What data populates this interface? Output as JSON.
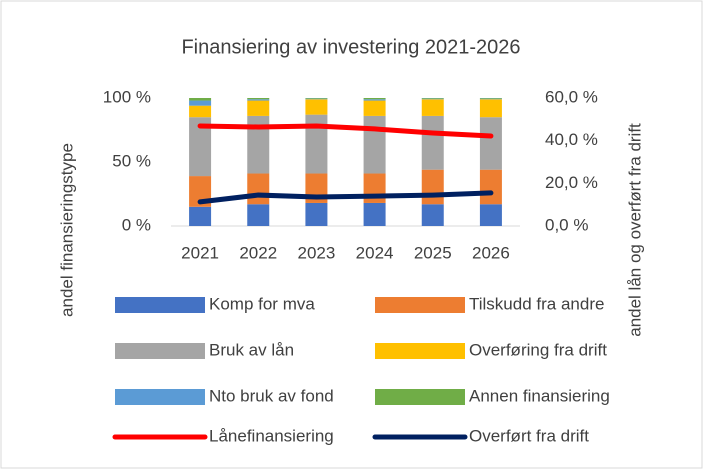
{
  "chart_data": {
    "type": "bar",
    "stacked": true,
    "title": "Finansiering av investering 2021-2026",
    "ylabel": "andel finansieringstype",
    "y2label": "andel lån og overført fra drift",
    "categories": [
      "2021",
      "2022",
      "2023",
      "2024",
      "2025",
      "2026"
    ],
    "ylim": [
      0,
      100
    ],
    "yticks": [
      {
        "value": 0,
        "label": "0 %"
      },
      {
        "value": 50,
        "label": "50 %"
      },
      {
        "value": 100,
        "label": "100 %"
      }
    ],
    "y2lim": [
      0,
      60
    ],
    "y2ticks": [
      {
        "value": 0,
        "label": "0,0 %"
      },
      {
        "value": 20,
        "label": "20,0 %"
      },
      {
        "value": 40,
        "label": "40,0 %"
      },
      {
        "value": 60,
        "label": "60,0 %"
      }
    ],
    "legend": "bottom",
    "series": [
      {
        "name": "Komp for mva",
        "color": "#4472c4",
        "values": [
          15,
          17,
          18,
          18,
          17,
          17
        ]
      },
      {
        "name": "Tilskudd fra andre",
        "color": "#ed7d31",
        "values": [
          24,
          24,
          23,
          23,
          27,
          27
        ]
      },
      {
        "name": "Bruk av lån",
        "color": "#a5a5a5",
        "values": [
          46,
          45,
          46,
          45,
          42,
          41
        ]
      },
      {
        "name": "Overføring fra drift",
        "color": "#ffc000",
        "values": [
          9,
          12,
          12,
          12,
          13,
          14
        ]
      },
      {
        "name": "Nto bruk av fond",
        "color": "#5b9bd5",
        "values": [
          4,
          1,
          0.5,
          1,
          0.5,
          0.5
        ]
      },
      {
        "name": "Annen finansiering",
        "color": "#70ad47",
        "values": [
          2,
          1,
          0.5,
          1,
          0.5,
          0.5
        ]
      },
      {
        "name": "Lånefinansiering",
        "color": "#ff0000",
        "type": "line",
        "axis": "y2",
        "values": [
          46.9,
          46.4,
          46.9,
          45.5,
          43.6,
          42.2
        ]
      },
      {
        "name": "Overført fra drift",
        "color": "#002060",
        "type": "line",
        "axis": "y2",
        "values": [
          11.3,
          14.5,
          13.6,
          14,
          14.5,
          15.5
        ]
      }
    ]
  }
}
